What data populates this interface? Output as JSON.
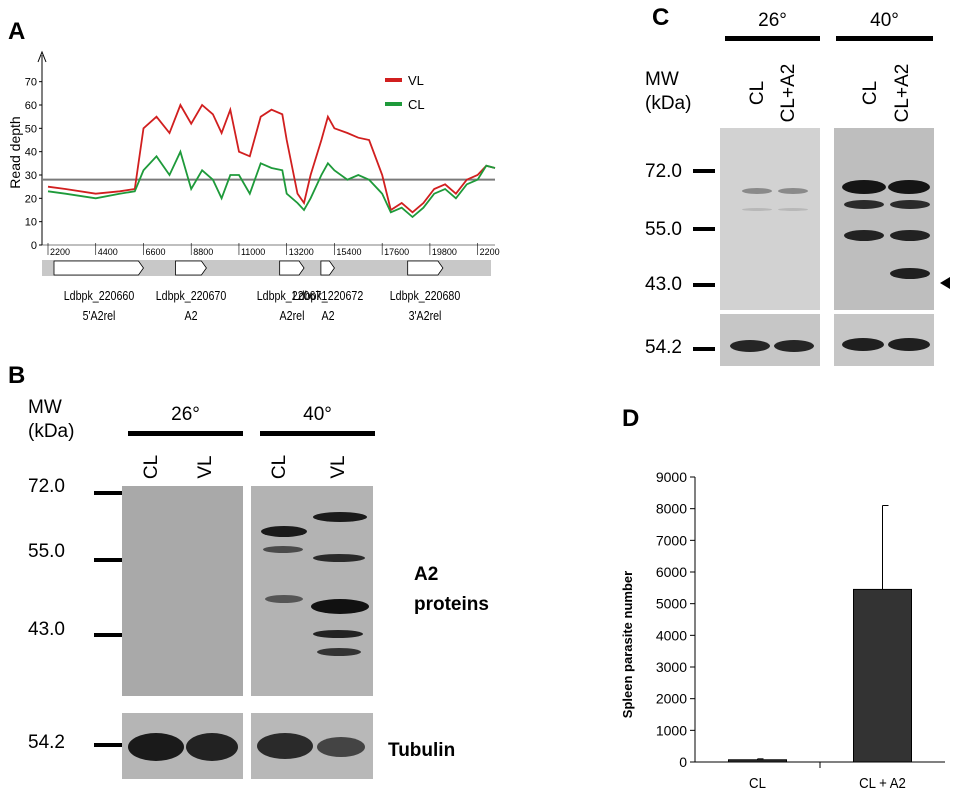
{
  "panels": {
    "a": {
      "label": "A",
      "chart_data": {
        "type": "line",
        "ylabel": "Read depth",
        "ylim": [
          0,
          75
        ],
        "yticks": [
          0,
          10,
          20,
          30,
          40,
          50,
          60,
          70
        ],
        "xticks": [
          "2200",
          "4400",
          "6600",
          "8800",
          "11000",
          "13200",
          "15400",
          "17600",
          "19800",
          "22000"
        ],
        "xlim": [
          2200,
          22800
        ],
        "reference_line": 28,
        "series": [
          {
            "name": "VL",
            "color": "#d11f1f",
            "x": [
              2200,
              3000,
              4400,
              5500,
              6200,
              6600,
              7200,
              7800,
              8300,
              8800,
              9300,
              9800,
              10200,
              10600,
              11000,
              11500,
              12000,
              12500,
              13000,
              13200,
              13700,
              14000,
              14300,
              14800,
              15100,
              15400,
              16000,
              16500,
              17000,
              17600,
              18000,
              18500,
              19000,
              19500,
              20000,
              20500,
              21000,
              21500,
              22000,
              22400,
              22800
            ],
            "y": [
              25,
              24,
              22,
              23,
              24,
              50,
              55,
              48,
              60,
              52,
              60,
              56,
              48,
              58,
              40,
              38,
              55,
              58,
              56,
              45,
              22,
              18,
              30,
              45,
              55,
              50,
              48,
              46,
              45,
              30,
              15,
              18,
              14,
              18,
              24,
              26,
              22,
              28,
              30,
              34,
              33
            ]
          },
          {
            "name": "CL",
            "color": "#1e9a3a",
            "x": [
              2200,
              3000,
              4400,
              5500,
              6200,
              6600,
              7200,
              7800,
              8300,
              8800,
              9300,
              9800,
              10200,
              10600,
              11000,
              11500,
              12000,
              12500,
              13000,
              13200,
              13700,
              14000,
              14300,
              14800,
              15100,
              15400,
              16000,
              16500,
              17000,
              17600,
              18000,
              18500,
              19000,
              19500,
              20000,
              20500,
              21000,
              21500,
              22000,
              22400,
              22800
            ],
            "y": [
              23,
              22,
              20,
              22,
              23,
              32,
              38,
              30,
              40,
              24,
              32,
              28,
              20,
              30,
              30,
              22,
              35,
              33,
              32,
              22,
              18,
              15,
              20,
              30,
              35,
              32,
              28,
              30,
              28,
              22,
              14,
              16,
              12,
              16,
              22,
              24,
              20,
              26,
              28,
              34,
              33
            ]
          }
        ],
        "legend": "top-right"
      },
      "genes": [
        {
          "id": "Ldbpk_220660",
          "name": "5'A2rel",
          "start": 2200,
          "end": 6600
        },
        {
          "id": "Ldbpk_220670",
          "name": "A2",
          "start": 7800,
          "end": 9500
        },
        {
          "id": "Ldbpk_220671",
          "name": "A2rel",
          "start": 12600,
          "end": 14000
        },
        {
          "id": "Ldbpk_220672",
          "name": "A2",
          "start": 14500,
          "end": 15400
        },
        {
          "id": "Ldbpk_220680",
          "name": "3'A2rel",
          "start": 18500,
          "end": 20400
        }
      ]
    },
    "b": {
      "label": "B",
      "mw_title_1": "MW",
      "mw_title_2": "(kDa)",
      "temps": [
        "26°",
        "40°"
      ],
      "lanes": [
        "CL",
        "VL",
        "CL",
        "VL"
      ],
      "markers": [
        "72.0",
        "55.0",
        "43.0"
      ],
      "tubulin_marker": "54.2",
      "label_a2_1": "A2",
      "label_a2_2": "proteins",
      "label_tubulin": "Tubulin"
    },
    "c": {
      "label": "C",
      "mw_title_1": "MW",
      "mw_title_2": "(kDa)",
      "temps": [
        "26°",
        "40°"
      ],
      "lanes": [
        "CL",
        "CL+A2",
        "CL",
        "CL+A2"
      ],
      "markers": [
        "72.0",
        "55.0",
        "43.0"
      ],
      "tubulin_marker": "54.2"
    },
    "d": {
      "label": "D",
      "chart_data": {
        "type": "bar",
        "categories": [
          "CL",
          "CL + A2"
        ],
        "values": [
          70,
          5450
        ],
        "errors": [
          30,
          2650
        ],
        "ylabel": "Spleen parasite number",
        "ylim": [
          0,
          9000
        ],
        "yticks": [
          0,
          1000,
          2000,
          3000,
          4000,
          5000,
          6000,
          7000,
          8000,
          9000
        ],
        "bar_color": "#333333"
      }
    }
  }
}
